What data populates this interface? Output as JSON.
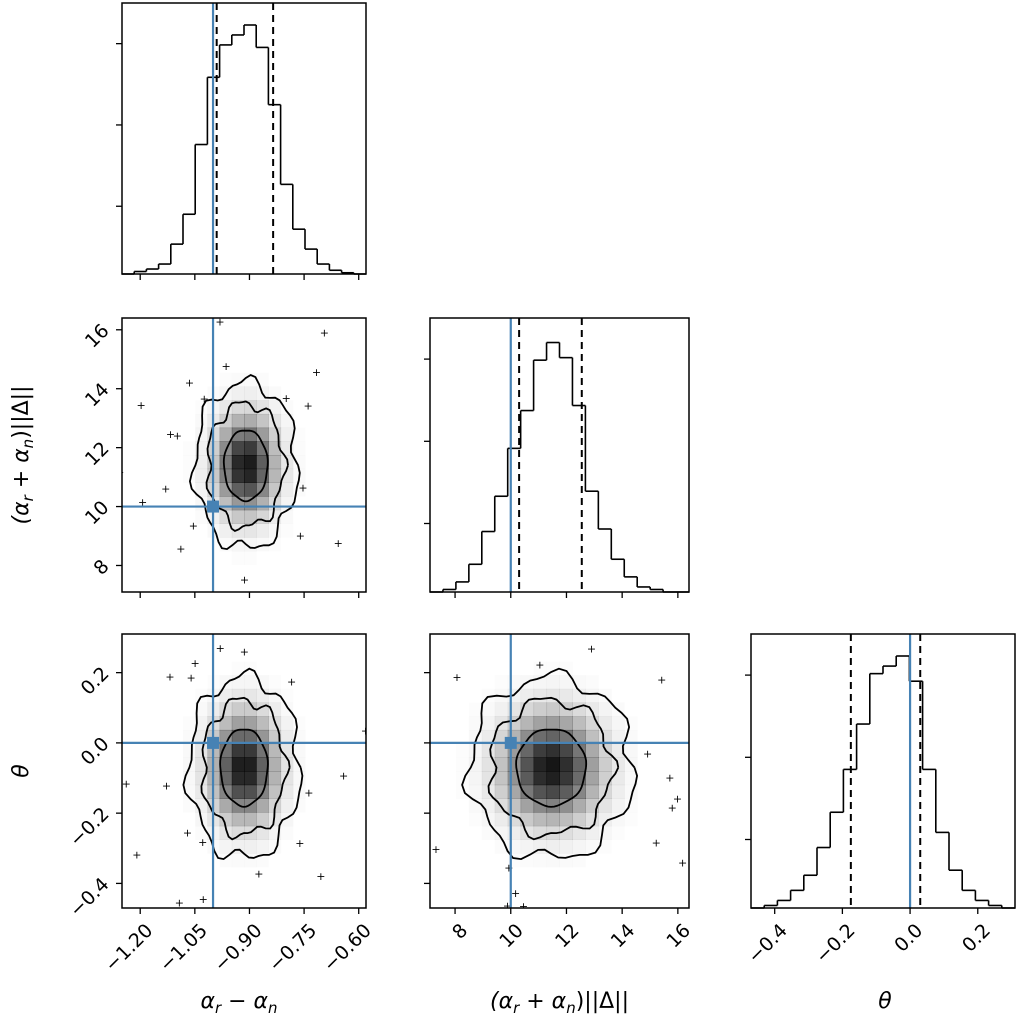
{
  "colors": {
    "truth": "#4682b4",
    "hist": "#000000",
    "frame": "#000000",
    "density": "#000000"
  },
  "chart_data": {
    "type": "corner",
    "truths": [
      -1.0,
      10.0,
      0.0
    ],
    "parameters": [
      {
        "id": "a",
        "label": "α_r − α_n",
        "label_parts": [
          "α",
          "r",
          " − α",
          "n"
        ]
      },
      {
        "id": "b",
        "label": "(α_r + α_n)||Δ||",
        "label_parts": [
          "(α",
          "r",
          " + α",
          "n",
          ")||Δ||"
        ]
      },
      {
        "id": "t",
        "label": "θ"
      }
    ],
    "ranges": {
      "a": [
        -1.25,
        -0.58
      ],
      "b": [
        7.1,
        16.4
      ],
      "t": [
        -0.47,
        0.31
      ]
    },
    "ticks": {
      "a": [
        {
          "v": -1.2,
          "label": "−1.20"
        },
        {
          "v": -1.05,
          "label": "−1.05"
        },
        {
          "v": -0.9,
          "label": "−0.90"
        },
        {
          "v": -0.75,
          "label": "−0.75"
        },
        {
          "v": -0.6,
          "label": "−0.60"
        }
      ],
      "b": [
        {
          "v": 8,
          "label": "8"
        },
        {
          "v": 10,
          "label": "10"
        },
        {
          "v": 12,
          "label": "12"
        },
        {
          "v": 14,
          "label": "14"
        },
        {
          "v": 16,
          "label": "16"
        }
      ],
      "t": [
        {
          "v": -0.4,
          "label": "−0.4"
        },
        {
          "v": -0.2,
          "label": "−0.2"
        },
        {
          "v": 0.0,
          "label": "0.0"
        },
        {
          "v": 0.2,
          "label": "0.2"
        }
      ]
    },
    "histograms": [
      {
        "param": "a",
        "edges": [
          -1.25,
          -1.2165,
          -1.183,
          -1.1495,
          -1.116,
          -1.0825,
          -1.049,
          -1.0155,
          -0.982,
          -0.9485,
          -0.915,
          -0.8815,
          -0.848,
          -0.8145,
          -0.781,
          -0.7475,
          -0.714,
          -0.6805,
          -0.647,
          -0.6135,
          -0.58
        ],
        "counts": [
          0.0,
          0.01,
          0.02,
          0.04,
          0.12,
          0.24,
          0.52,
          0.79,
          0.92,
          0.96,
          1.0,
          0.91,
          0.68,
          0.36,
          0.18,
          0.1,
          0.04,
          0.015,
          0.005,
          0.0
        ],
        "quantiles": [
          -0.99,
          -0.835
        ]
      },
      {
        "param": "b",
        "edges": [
          7.1,
          7.565,
          8.03,
          8.495,
          8.96,
          9.425,
          9.89,
          10.355,
          10.82,
          11.285,
          11.75,
          12.215,
          12.68,
          13.145,
          13.61,
          14.075,
          14.54,
          15.005,
          15.47,
          15.935,
          16.4
        ],
        "counts": [
          0.0,
          0.01,
          0.04,
          0.11,
          0.24,
          0.38,
          0.57,
          0.72,
          0.92,
          0.99,
          0.93,
          0.74,
          0.4,
          0.25,
          0.13,
          0.06,
          0.02,
          0.01,
          0.0,
          0.0
        ],
        "quantiles": [
          10.3,
          12.55
        ]
      },
      {
        "param": "t",
        "edges": [
          -0.47,
          -0.431,
          -0.392,
          -0.353,
          -0.314,
          -0.275,
          -0.236,
          -0.197,
          -0.158,
          -0.119,
          -0.08,
          -0.041,
          -0.002,
          0.037,
          0.076,
          0.115,
          0.154,
          0.193,
          0.232,
          0.271,
          0.31
        ],
        "counts": [
          0.0,
          0.01,
          0.03,
          0.07,
          0.13,
          0.24,
          0.38,
          0.55,
          0.73,
          0.93,
          0.96,
          1.0,
          0.9,
          0.55,
          0.3,
          0.15,
          0.07,
          0.03,
          0.01,
          0.0
        ],
        "quantiles": [
          -0.175,
          0.03
        ]
      }
    ],
    "joint_panels": [
      {
        "x": "a",
        "y": "b",
        "center": [
          -0.91,
          11.4
        ],
        "sigma": [
          0.06,
          1.2
        ],
        "rho": 0.0
      },
      {
        "x": "a",
        "y": "t",
        "center": [
          -0.915,
          -0.07
        ],
        "sigma": [
          0.065,
          0.11
        ],
        "rho": 0.0
      },
      {
        "x": "b",
        "y": "t",
        "center": [
          11.45,
          -0.07
        ],
        "sigma": [
          1.25,
          0.11
        ],
        "rho": 0.0
      }
    ],
    "contour_levels_sigma": [
      1,
      2,
      3
    ],
    "grid": false,
    "legend": "none"
  }
}
